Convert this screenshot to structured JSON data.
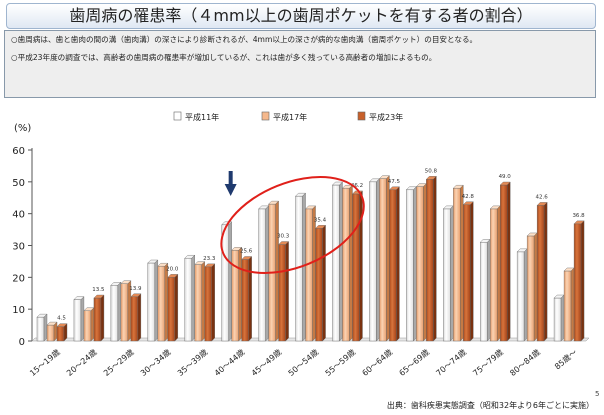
{
  "title": "歯周病の罹患率（４mm以上の歯周ポケットを有する者の割合）",
  "notes": [
    "○歯周病は、歯と歯肉の間の溝（歯肉溝）の深さにより診断されるが、4mm以上の深さが病的な歯肉溝（歯周ポケット）の目安となる。",
    "○平成23年度の調査では、高齢者の歯周病の罹患率が増加しているが、これは歯が多く残っている高齢者の増加によるもの。"
  ],
  "source": "出典：歯科疾患実態調査（昭和32年より6年ごとに実施）",
  "page_number": "5",
  "chart_data": {
    "type": "bar",
    "ylabel": "(%)",
    "ylim": [
      0,
      60
    ],
    "yticks": [
      0,
      10,
      20,
      30,
      40,
      50,
      60
    ],
    "grid": false,
    "legend_position": "top",
    "categories": [
      "15～19歳",
      "20～24歳",
      "25～29歳",
      "30～34歳",
      "35～39歳",
      "40～44歳",
      "45～49歳",
      "50～54歳",
      "55～59歳",
      "60～64歳",
      "65～69歳",
      "70～74歳",
      "75～79歳",
      "80～84歳",
      "85歳～"
    ],
    "series": [
      {
        "name": "平成11年",
        "color": "#ffffff",
        "values": [
          7.5,
          13,
          17.5,
          24.5,
          26,
          36.5,
          41.5,
          45.5,
          49,
          50,
          47.5,
          41.5,
          31,
          28,
          13.5
        ]
      },
      {
        "name": "平成17年",
        "color": "#f5b88c",
        "values": [
          5,
          9.5,
          18,
          23.5,
          24,
          28.5,
          43,
          41.5,
          48,
          51,
          48.5,
          48,
          41.5,
          33,
          22
        ]
      },
      {
        "name": "平成23年",
        "color": "#c8602a",
        "values": [
          4.5,
          13.5,
          13.9,
          20,
          23.3,
          25.6,
          30.3,
          35.4,
          46.2,
          47.5,
          50.8,
          42.8,
          49,
          42.6,
          36.8
        ]
      }
    ],
    "data_labels": [
      {
        "category_index": 0,
        "series_index": 2,
        "text": "4.5"
      },
      {
        "category_index": 1,
        "series_index": 2,
        "text": "13.5"
      },
      {
        "category_index": 2,
        "series_index": 2,
        "text": "13.9"
      },
      {
        "category_index": 3,
        "series_index": 2,
        "text": "20.0"
      },
      {
        "category_index": 4,
        "series_index": 2,
        "text": "23.3"
      },
      {
        "category_index": 5,
        "series_index": 2,
        "text": "25.6"
      },
      {
        "category_index": 6,
        "series_index": 2,
        "text": "30.3"
      },
      {
        "category_index": 7,
        "series_index": 2,
        "text": "35.4"
      },
      {
        "category_index": 8,
        "series_index": 2,
        "text": "46.2"
      },
      {
        "category_index": 9,
        "series_index": 2,
        "text": "47.5"
      },
      {
        "category_index": 10,
        "series_index": 2,
        "text": "50.8"
      },
      {
        "category_index": 11,
        "series_index": 2,
        "text": "42.8"
      },
      {
        "category_index": 12,
        "series_index": 2,
        "text": "49.0"
      },
      {
        "category_index": 13,
        "series_index": 2,
        "text": "42.6"
      },
      {
        "category_index": 14,
        "series_index": 2,
        "text": "36.8"
      }
    ],
    "annotations": {
      "arrow": {
        "category_index": 5,
        "color": "#1f3a6e"
      },
      "ellipse": {
        "from_category_index": 5,
        "to_category_index": 8,
        "color": "#e0201a"
      }
    }
  }
}
